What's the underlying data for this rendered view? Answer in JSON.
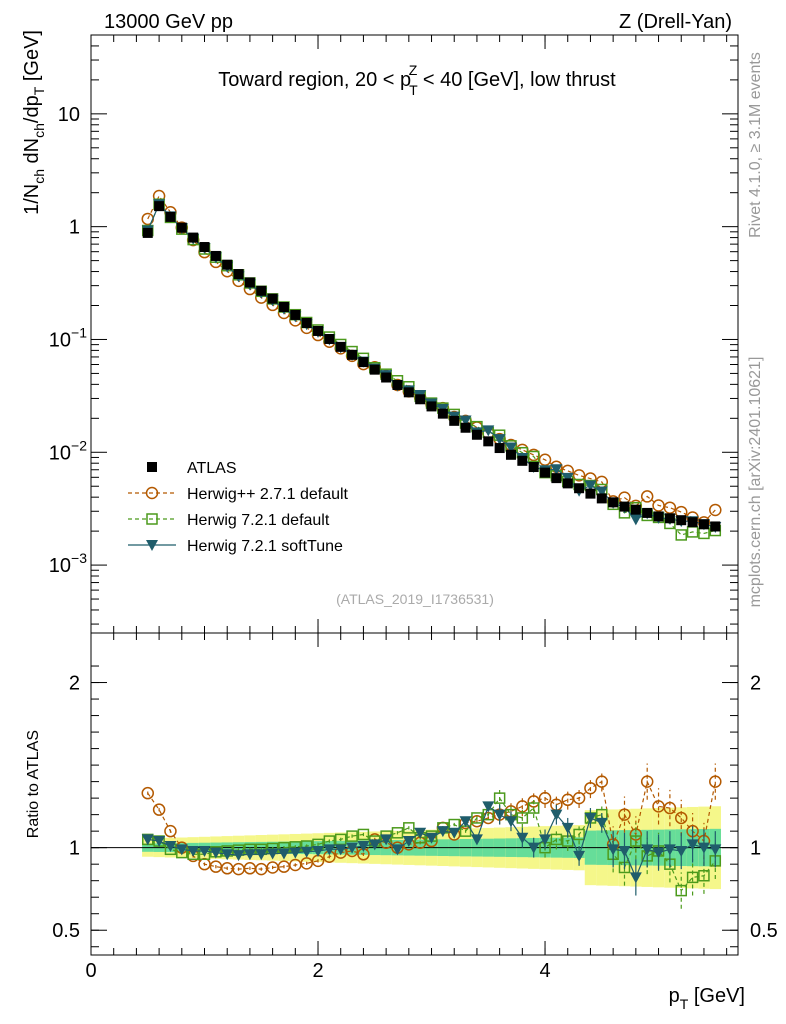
{
  "header": {
    "left": "13000 GeV pp",
    "right": "Z (Drell-Yan)"
  },
  "side_labels": {
    "rivet": "Rivet 4.1.0, ≥ 3.1M events",
    "mcplots": "mcplots.cern.ch [arXiv:2401.10621]"
  },
  "chart_data": {
    "type": "scatter",
    "title": "Toward region, 20 < p_T^Z < 40 [GeV], low thrust",
    "title_parts": {
      "prefix": "Toward region, 20 < p",
      "sup": "Z",
      "sub": "T",
      "suffix": " < 40 [GeV], low thrust"
    },
    "ylabel_main": {
      "a": "1/N",
      "b": "ch",
      "c": " dN",
      "d": "ch",
      "e": "/dp",
      "f": "T",
      "g": " [GeV]"
    },
    "ylabel_ratio": "Ratio to ATLAS",
    "xlabel": {
      "a": "p",
      "b": "T",
      "c": " [GeV]"
    },
    "analysis_id": "(ATLAS_2019_I1736531)",
    "xlim": [
      0,
      5.7
    ],
    "ylim_main": [
      0.00025,
      50
    ],
    "ylim_ratio": [
      0.35,
      2.3
    ],
    "main_yticks": [
      {
        "value": 10,
        "base": "10",
        "exp": ""
      },
      {
        "value": 1,
        "base": "1",
        "exp": ""
      },
      {
        "value": 0.1,
        "base": "10",
        "exp": "−1"
      },
      {
        "value": 0.01,
        "base": "10",
        "exp": "−2"
      },
      {
        "value": 0.001,
        "base": "10",
        "exp": "−3"
      }
    ],
    "ratio_yticks": [
      {
        "value": 2,
        "label": "2"
      },
      {
        "value": 1,
        "label": "1"
      },
      {
        "value": 0.5,
        "label": "0.5"
      }
    ],
    "xticks": [
      {
        "value": 0,
        "label": "0"
      },
      {
        "value": 2,
        "label": "2"
      },
      {
        "value": 4,
        "label": "4"
      }
    ],
    "x": [
      0.5,
      0.6,
      0.7,
      0.8,
      0.9,
      1.0,
      1.1,
      1.2,
      1.3,
      1.4,
      1.5,
      1.6,
      1.7,
      1.8,
      1.9,
      2.0,
      2.1,
      2.2,
      2.3,
      2.4,
      2.5,
      2.6,
      2.7,
      2.8,
      2.9,
      3.0,
      3.1,
      3.2,
      3.3,
      3.4,
      3.5,
      3.6,
      3.7,
      3.8,
      3.9,
      4.0,
      4.1,
      4.2,
      4.3,
      4.4,
      4.5,
      4.6,
      4.7,
      4.8,
      4.9,
      5.0,
      5.1,
      5.2,
      5.3,
      5.4,
      5.5
    ],
    "atlas": [
      0.88,
      1.52,
      1.22,
      0.98,
      0.8,
      0.66,
      0.55,
      0.46,
      0.38,
      0.32,
      0.27,
      0.23,
      0.194,
      0.165,
      0.14,
      0.119,
      0.101,
      0.086,
      0.073,
      0.063,
      0.054,
      0.046,
      0.0395,
      0.034,
      0.0295,
      0.0255,
      0.022,
      0.019,
      0.0165,
      0.0143,
      0.0125,
      0.0109,
      0.0095,
      0.0084,
      0.0074,
      0.0066,
      0.0059,
      0.0053,
      0.0048,
      0.0043,
      0.0039,
      0.0036,
      0.0033,
      0.0031,
      0.0029,
      0.0027,
      0.0026,
      0.0025,
      0.0024,
      0.0023,
      0.0022
    ],
    "series": [
      {
        "name": "ATLAS",
        "color": "#000000",
        "ratio": [
          1,
          1,
          1,
          1,
          1,
          1,
          1,
          1,
          1,
          1,
          1,
          1,
          1,
          1,
          1,
          1,
          1,
          1,
          1,
          1,
          1,
          1,
          1,
          1,
          1,
          1,
          1,
          1,
          1,
          1,
          1,
          1,
          1,
          1,
          1,
          1,
          1,
          1,
          1,
          1,
          1,
          1,
          1,
          1,
          1,
          1,
          1,
          1,
          1,
          1,
          1
        ]
      },
      {
        "name": "Herwig++ 2.7.1 default",
        "color": "#b35900",
        "ratio": [
          1.33,
          1.23,
          1.1,
          1.0,
          0.95,
          0.9,
          0.885,
          0.875,
          0.87,
          0.875,
          0.87,
          0.88,
          0.885,
          0.895,
          0.905,
          0.92,
          0.945,
          0.97,
          0.98,
          0.96,
          1.05,
          1.03,
          1.0,
          1.02,
          1.03,
          1.04,
          1.12,
          1.08,
          1.15,
          1.16,
          1.18,
          1.2,
          1.22,
          1.25,
          1.28,
          1.3,
          1.26,
          1.29,
          1.3,
          1.36,
          1.4,
          1.02,
          1.2,
          1.08,
          1.4,
          1.25,
          1.24,
          1.18,
          1.1,
          1.04,
          1.4
        ]
      },
      {
        "name": "Herwig 7.2.1 default",
        "color": "#4c9a1c",
        "ratio": [
          1.05,
          1.04,
          0.99,
          0.97,
          0.96,
          0.96,
          0.975,
          0.98,
          0.985,
          0.99,
          0.99,
          0.995,
          1.0,
          1.005,
          1.01,
          1.02,
          1.04,
          1.05,
          1.07,
          1.08,
          1.04,
          1.07,
          1.09,
          1.12,
          1.06,
          1.07,
          1.12,
          1.14,
          1.1,
          1.18,
          1.2,
          1.3,
          1.2,
          1.18,
          1.24,
          1.0,
          1.05,
          1.04,
          1.08,
          1.18,
          1.2,
          0.96,
          0.88,
          1.04,
          0.95,
          0.98,
          0.9,
          0.74,
          0.82,
          0.83,
          0.92
        ]
      },
      {
        "name": "Herwig 7.2.1 softTune",
        "color": "#1f5d6b",
        "ratio": [
          1.05,
          1.04,
          1.01,
          0.99,
          0.98,
          0.98,
          0.97,
          0.96,
          0.955,
          0.96,
          0.96,
          0.965,
          0.965,
          0.97,
          0.975,
          0.98,
          0.99,
          0.99,
          1.0,
          1.01,
          1.02,
          1.05,
          0.99,
          1.04,
          1.09,
          1.06,
          1.1,
          1.09,
          1.16,
          1.05,
          1.25,
          1.2,
          1.16,
          1.06,
          1.0,
          1.05,
          1.2,
          1.12,
          0.95,
          1.18,
          1.15,
          0.99,
          0.98,
          0.82,
          0.99,
          0.97,
          0.99,
          0.98,
          1.02,
          1.0,
          0.99
        ]
      }
    ],
    "legend": [
      {
        "label": "ATLAS",
        "marker": "filled-square"
      },
      {
        "label": "Herwig++ 2.7.1 default",
        "marker": "open-circle"
      },
      {
        "label": "Herwig 7.2.1 default",
        "marker": "open-square"
      },
      {
        "label": "Herwig 7.2.1 softTune",
        "marker": "filled-triangle-down"
      }
    ],
    "legend_position": "lower-left",
    "band_colors": {
      "inner": "#66dd99",
      "outer": "#f5f78a"
    }
  }
}
